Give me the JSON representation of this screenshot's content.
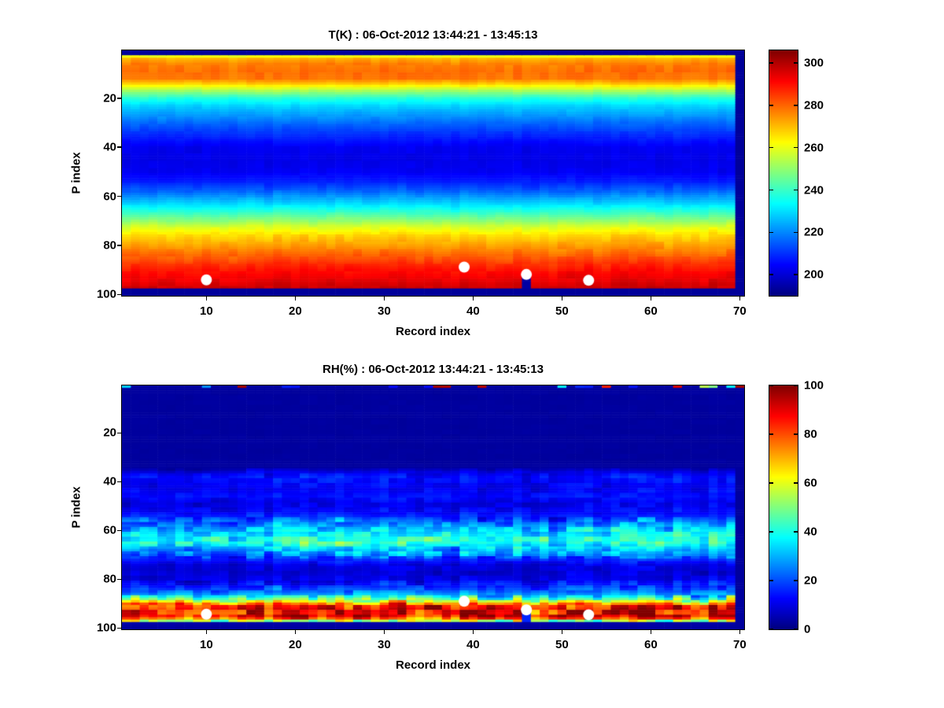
{
  "figure": {
    "background": "#ffffff"
  },
  "chart_data": [
    {
      "type": "heatmap",
      "title": "T(K) : 06-Oct-2012 13:44:21 - 13:45:13",
      "xlabel": "Record index",
      "ylabel": "P index",
      "n_records": 70,
      "n_levels": 100,
      "x_range": [
        0.5,
        70.5
      ],
      "y_range": [
        0.5,
        100.5
      ],
      "y_reversed": true,
      "x_ticks": [
        10,
        20,
        30,
        40,
        50,
        60,
        70
      ],
      "y_ticks": [
        20,
        40,
        60,
        80,
        100
      ],
      "colormap": "jet",
      "clim": [
        190,
        306
      ],
      "colorbar_ticks": [
        200,
        220,
        240,
        260,
        280,
        300
      ],
      "profile": [
        [
          1,
          193
        ],
        [
          2,
          193
        ],
        [
          3,
          262
        ],
        [
          4,
          272
        ],
        [
          6,
          277
        ],
        [
          9,
          279
        ],
        [
          12,
          278
        ],
        [
          14,
          269
        ],
        [
          15,
          263
        ],
        [
          17,
          252
        ],
        [
          20,
          238
        ],
        [
          23,
          229
        ],
        [
          27,
          222
        ],
        [
          31,
          215
        ],
        [
          35,
          209
        ],
        [
          40,
          203
        ],
        [
          45,
          202
        ],
        [
          50,
          203
        ],
        [
          54,
          208
        ],
        [
          58,
          216
        ],
        [
          61,
          224
        ],
        [
          64,
          232
        ],
        [
          66,
          238
        ],
        [
          68,
          244
        ],
        [
          70,
          250
        ],
        [
          72,
          257
        ],
        [
          74,
          262
        ],
        [
          76,
          267
        ],
        [
          79,
          272
        ],
        [
          82,
          277
        ],
        [
          85,
          282
        ],
        [
          88,
          287
        ],
        [
          91,
          291
        ],
        [
          94,
          294
        ],
        [
          96,
          296
        ],
        [
          97,
          297
        ],
        [
          98,
          193
        ],
        [
          100,
          193
        ]
      ],
      "noise_bands": [
        {
          "p0": 1,
          "p1": 2,
          "amp": 0.4,
          "col_amp": 0
        },
        {
          "p0": 3,
          "p1": 15,
          "amp": 2.2,
          "col_amp": 1.0
        },
        {
          "p0": 16,
          "p1": 30,
          "amp": 1.8,
          "col_amp": 0.8
        },
        {
          "p0": 31,
          "p1": 55,
          "amp": 1.5,
          "col_amp": 0.8
        },
        {
          "p0": 56,
          "p1": 75,
          "amp": 2.2,
          "col_amp": 1.0
        },
        {
          "p0": 76,
          "p1": 97,
          "amp": 2.5,
          "col_amp": 1.2
        },
        {
          "p0": 98,
          "p1": 100,
          "amp": 0.3,
          "col_amp": 0
        }
      ],
      "row_block": 3,
      "col_block": 1,
      "features": {
        "right_col_low": {
          "record": 70,
          "value": 193
        },
        "notch": {
          "record": 46,
          "p0": 93,
          "p1": 97,
          "value": 194
        }
      },
      "markers": [
        {
          "record": 10,
          "p": 94.0
        },
        {
          "record": 39,
          "p": 88.8
        },
        {
          "record": 46,
          "p": 91.8
        },
        {
          "record": 53,
          "p": 94.2
        }
      ],
      "marker_color": "#ffffff"
    },
    {
      "type": "heatmap",
      "title": "RH(%) : 06-Oct-2012 13:44:21 - 13:45:13",
      "xlabel": "Record index",
      "ylabel": "P index",
      "n_records": 70,
      "n_levels": 100,
      "x_range": [
        0.5,
        70.5
      ],
      "y_range": [
        0.5,
        100.5
      ],
      "y_reversed": true,
      "x_ticks": [
        10,
        20,
        30,
        40,
        50,
        60,
        70
      ],
      "y_ticks": [
        20,
        40,
        60,
        80,
        100
      ],
      "colormap": "jet",
      "clim": [
        0,
        100
      ],
      "colorbar_ticks": [
        0,
        20,
        40,
        60,
        80,
        100
      ],
      "profile": [
        [
          1,
          3
        ],
        [
          34,
          3
        ],
        [
          36,
          10
        ],
        [
          38,
          14
        ],
        [
          40,
          13
        ],
        [
          43,
          11
        ],
        [
          46,
          14
        ],
        [
          49,
          10
        ],
        [
          52,
          12
        ],
        [
          55,
          18
        ],
        [
          58,
          28
        ],
        [
          61,
          36
        ],
        [
          63,
          40
        ],
        [
          65,
          42
        ],
        [
          66,
          38
        ],
        [
          68,
          30
        ],
        [
          70,
          24
        ],
        [
          72,
          16
        ],
        [
          74,
          10
        ],
        [
          77,
          8
        ],
        [
          80,
          10
        ],
        [
          82,
          14
        ],
        [
          84,
          20
        ],
        [
          86,
          28
        ],
        [
          88,
          45
        ],
        [
          89,
          60
        ],
        [
          90,
          75
        ],
        [
          91,
          85
        ],
        [
          93,
          90
        ],
        [
          95,
          88
        ],
        [
          96,
          78
        ],
        [
          97,
          55
        ],
        [
          98,
          4
        ],
        [
          100,
          3
        ]
      ],
      "noise_bands": [
        {
          "p0": 2,
          "p1": 34,
          "amp": 0.5,
          "col_amp": 0
        },
        {
          "p0": 35,
          "p1": 54,
          "amp": 4,
          "col_amp": 2
        },
        {
          "p0": 55,
          "p1": 71,
          "amp": 11,
          "col_amp": 5
        },
        {
          "p0": 72,
          "p1": 80,
          "amp": 4,
          "col_amp": 2
        },
        {
          "p0": 81,
          "p1": 86,
          "amp": 8,
          "col_amp": 3
        },
        {
          "p0": 87,
          "p1": 97,
          "amp": 19,
          "col_amp": 7
        },
        {
          "p0": 98,
          "p1": 100,
          "amp": 0.5,
          "col_amp": 0
        }
      ],
      "row_block": 2,
      "col_block": 2,
      "features": {
        "right_col_low": {
          "record": 70,
          "value": 3
        },
        "notch": {
          "record": 46,
          "p0": 93,
          "p1": 97,
          "value": 16
        },
        "top_specks": [
          {
            "record": 1,
            "value": 32
          },
          {
            "record": 10,
            "value": 26
          },
          {
            "record": 14,
            "value": 97
          },
          {
            "record": 19,
            "value": 15
          },
          {
            "record": 20,
            "value": 14
          },
          {
            "record": 31,
            "value": 13
          },
          {
            "record": 35,
            "value": 13
          },
          {
            "record": 36,
            "value": 97
          },
          {
            "record": 37,
            "value": 96
          },
          {
            "record": 41,
            "value": 95
          },
          {
            "record": 50,
            "value": 36
          },
          {
            "record": 52,
            "value": 16
          },
          {
            "record": 53,
            "value": 15
          },
          {
            "record": 55,
            "value": 85
          },
          {
            "record": 58,
            "value": 14
          },
          {
            "record": 63,
            "value": 92
          },
          {
            "record": 66,
            "value": 55
          },
          {
            "record": 67,
            "value": 50
          },
          {
            "record": 69,
            "value": 35
          },
          {
            "record": 70,
            "value": 97
          }
        ]
      },
      "markers": [
        {
          "record": 10,
          "p": 94.3
        },
        {
          "record": 39,
          "p": 89.0
        },
        {
          "record": 46,
          "p": 92.5
        },
        {
          "record": 53,
          "p": 94.5
        }
      ],
      "marker_color": "#ffffff"
    }
  ]
}
